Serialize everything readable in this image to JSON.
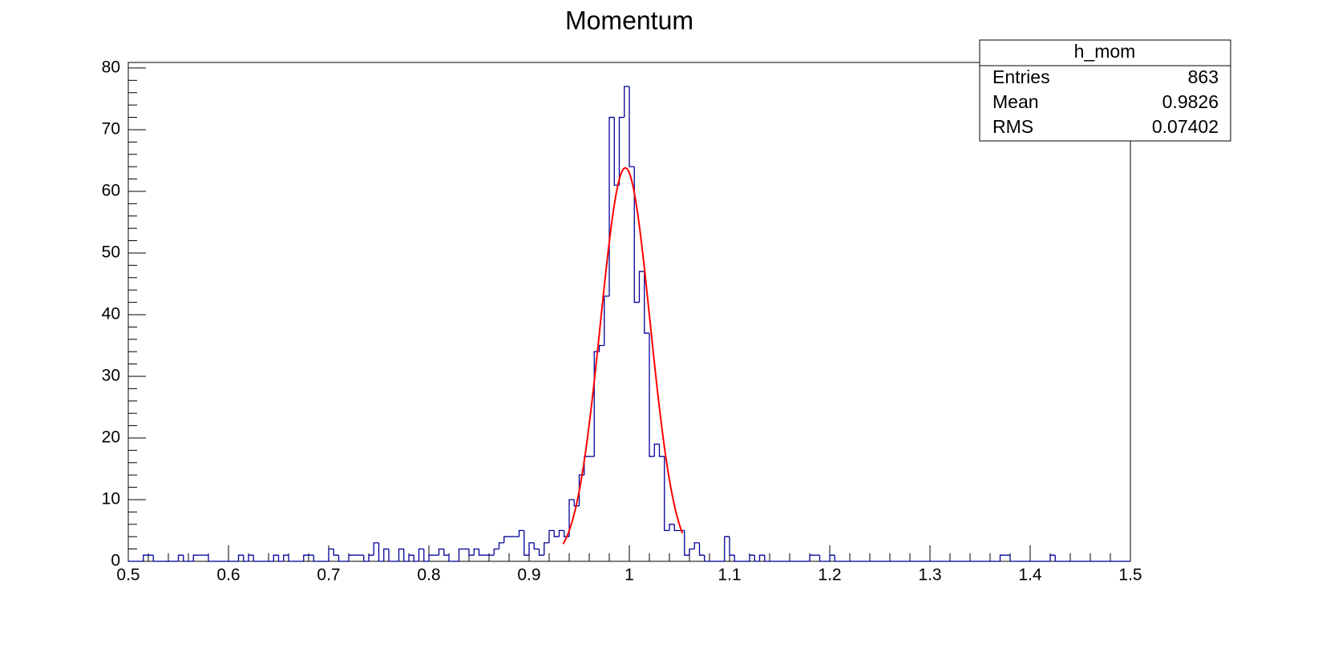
{
  "chart_data": {
    "type": "histogram",
    "title": "Momentum",
    "bins": [
      0.5,
      0.505,
      0.51,
      0.515,
      0.52,
      0.525,
      0.53,
      0.535,
      0.54,
      0.545,
      0.55,
      0.555,
      0.56,
      0.565,
      0.57,
      0.575,
      0.58,
      0.585,
      0.59,
      0.595,
      0.6,
      0.605,
      0.61,
      0.615,
      0.62,
      0.625,
      0.63,
      0.635,
      0.64,
      0.645,
      0.65,
      0.655,
      0.66,
      0.665,
      0.67,
      0.675,
      0.68,
      0.685,
      0.69,
      0.695,
      0.7,
      0.705,
      0.71,
      0.715,
      0.72,
      0.725,
      0.73,
      0.735,
      0.74,
      0.745,
      0.75,
      0.755,
      0.76,
      0.765,
      0.77,
      0.775,
      0.78,
      0.785,
      0.79,
      0.795,
      0.8,
      0.805,
      0.81,
      0.815,
      0.82,
      0.825,
      0.83,
      0.835,
      0.84,
      0.845,
      0.85,
      0.855,
      0.86,
      0.865,
      0.87,
      0.875,
      0.88,
      0.885,
      0.89,
      0.895,
      0.9,
      0.905,
      0.91,
      0.915,
      0.92,
      0.925,
      0.93,
      0.935,
      0.94,
      0.945,
      0.95,
      0.955,
      0.96,
      0.965,
      0.97,
      0.975,
      0.98,
      0.985,
      0.99,
      0.995,
      1.0,
      1.005,
      1.01,
      1.015,
      1.02,
      1.025,
      1.03,
      1.035,
      1.04,
      1.045,
      1.05,
      1.055,
      1.06,
      1.065,
      1.07,
      1.075,
      1.08,
      1.085,
      1.09,
      1.095,
      1.1,
      1.105,
      1.11,
      1.115,
      1.12,
      1.125,
      1.13,
      1.135,
      1.14,
      1.145,
      1.15,
      1.155,
      1.16,
      1.165,
      1.17,
      1.175,
      1.18,
      1.185,
      1.19,
      1.195,
      1.2,
      1.205,
      1.21,
      1.215,
      1.22,
      1.225,
      1.23,
      1.235,
      1.24,
      1.245,
      1.25,
      1.255,
      1.26,
      1.265,
      1.27,
      1.275,
      1.28,
      1.285,
      1.29,
      1.295,
      1.3,
      1.305,
      1.31,
      1.315,
      1.32,
      1.325,
      1.33,
      1.335,
      1.34,
      1.345,
      1.35,
      1.355,
      1.36,
      1.365,
      1.37,
      1.375,
      1.38,
      1.385,
      1.39,
      1.395,
      1.4,
      1.405,
      1.41,
      1.415,
      1.42,
      1.425,
      1.43,
      1.435,
      1.44,
      1.445,
      1.45,
      1.455,
      1.46,
      1.465,
      1.47,
      1.475,
      1.48,
      1.485,
      1.49,
      1.495,
      1.5
    ],
    "values": [
      0,
      0,
      0,
      1,
      1,
      0,
      0,
      0,
      0,
      0,
      1,
      0,
      0,
      1,
      1,
      1,
      0,
      0,
      0,
      0,
      0,
      0,
      1,
      0,
      1,
      0,
      0,
      0,
      0,
      1,
      0,
      1,
      0,
      0,
      0,
      1,
      1,
      0,
      0,
      0,
      2,
      1,
      0,
      0,
      1,
      1,
      1,
      0,
      1,
      3,
      0,
      2,
      0,
      0,
      2,
      0,
      1,
      0,
      2,
      0,
      1,
      1,
      2,
      1,
      0,
      0,
      2,
      2,
      1,
      2,
      1,
      1,
      1,
      2,
      3,
      4,
      4,
      4,
      5,
      1,
      3,
      2,
      1,
      3,
      5,
      4,
      5,
      4,
      10,
      9,
      14,
      17,
      17,
      34,
      35,
      43,
      72,
      61,
      72,
      77,
      64,
      42,
      47,
      37,
      17,
      19,
      17,
      5,
      6,
      5,
      5,
      1,
      2,
      3,
      1,
      0,
      0,
      0,
      0,
      4,
      1,
      0,
      0,
      0,
      1,
      0,
      1,
      0,
      0,
      0,
      0,
      0,
      0,
      0,
      0,
      0,
      1,
      1,
      0,
      0,
      1,
      0,
      0,
      0,
      0,
      0,
      0,
      0,
      0,
      0,
      0,
      0,
      0,
      0,
      0,
      0,
      0,
      0,
      0,
      0,
      0,
      0,
      0,
      0,
      0,
      0,
      0,
      0,
      0,
      0,
      0,
      0,
      0,
      0,
      1,
      1,
      0,
      0,
      0,
      0,
      0,
      0,
      0,
      0,
      1,
      0,
      0,
      0,
      0,
      0,
      0,
      0,
      0,
      0,
      0,
      0,
      0,
      0,
      0,
      0
    ],
    "color": "#000099",
    "xlim": [
      0.5,
      1.5
    ],
    "xticks": [
      0.5,
      0.6,
      0.7,
      0.8,
      0.9,
      1,
      1.1,
      1.2,
      1.3,
      1.4,
      1.5
    ],
    "ylim": [
      0,
      80.9
    ],
    "yticks": [
      0,
      10,
      20,
      30,
      40,
      50,
      60,
      70,
      80
    ],
    "minor_divisions": 5,
    "fit": {
      "function": "gaus",
      "color": "#ff0000",
      "constant": 63.8,
      "mean": 0.996,
      "sigma": 0.0248,
      "xlim": [
        0.934,
        1.053
      ]
    },
    "stats": {
      "title": "h_mom",
      "rows": [
        {
          "label": "Entries",
          "value": 863
        },
        {
          "label": "Mean",
          "value": 0.9826
        },
        {
          "label": "RMS",
          "value": 0.07402
        }
      ]
    }
  }
}
